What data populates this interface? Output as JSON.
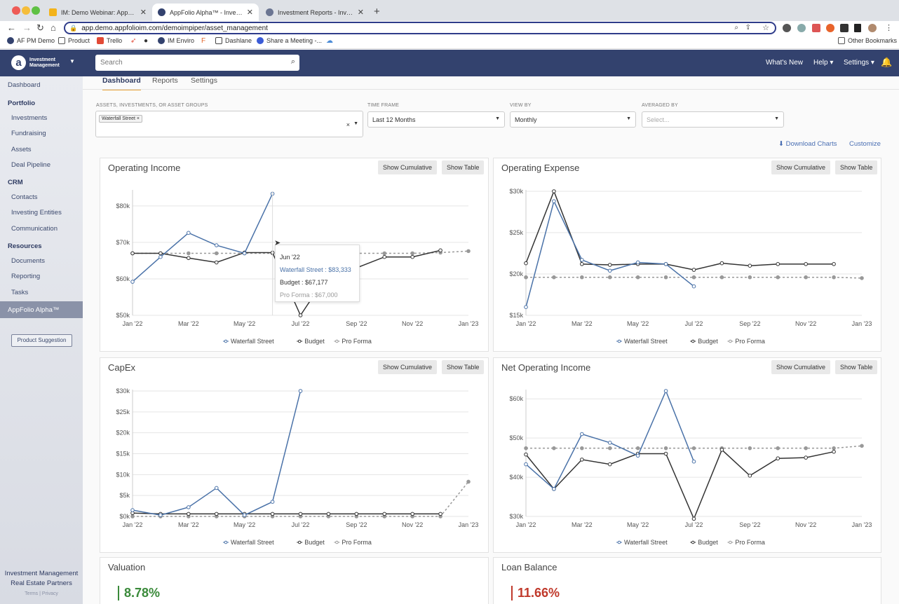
{
  "browser": {
    "tabs": [
      {
        "title": "IM: Demo Webinar: AppFolio A",
        "icon_color": "#f3b31b"
      },
      {
        "title": "AppFolio Alpha™ - Investment",
        "icon_color": "#33426e"
      },
      {
        "title": "Investment Reports - Investme",
        "icon_color": "#33426e"
      }
    ],
    "url": "app.demo.appfolioim.com/demoimpiper/asset_management",
    "bookmarks": [
      "AF PM Demo",
      "Product",
      "Trello",
      "IM Enviro",
      "Dashlane",
      "Share a Meeting -..."
    ],
    "other_bookmarks": "Other Bookmarks"
  },
  "header": {
    "brand_line1": "Investment",
    "brand_line2": "Management",
    "logo": "a",
    "search_placeholder": "Search",
    "whats_new": "What's New",
    "help": "Help ▾",
    "settings": "Settings ▾"
  },
  "sidebar": {
    "dashboard": "Dashboard",
    "portfolio": "Portfolio",
    "investments": "Investments",
    "fundraising": "Fundraising",
    "assets": "Assets",
    "deal_pipeline": "Deal Pipeline",
    "crm": "CRM",
    "contacts": "Contacts",
    "investing_entities": "Investing Entities",
    "communication": "Communication",
    "resources": "Resources",
    "documents": "Documents",
    "reporting": "Reporting",
    "tasks": "Tasks",
    "alpha": "AppFolio Alpha™",
    "product_suggestion": "Product Suggestion",
    "footer_line1": "Investment Management",
    "footer_line2": "Real Estate Partners",
    "terms": "Terms",
    "privacy": "Privacy"
  },
  "tabs": {
    "dashboard": "Dashboard",
    "reports": "Reports",
    "settings": "Settings"
  },
  "filters": {
    "assets_label": "ASSETS, INVESTMENTS, OR ASSET GROUPS",
    "asset_tag": "Waterfall Street ×",
    "clear": "×",
    "timeframe_label": "TIME FRAME",
    "timeframe_value": "Last 12 Months",
    "viewby_label": "VIEW BY",
    "viewby_value": "Monthly",
    "averaged_label": "AVERAGED BY",
    "averaged_placeholder": "Select..."
  },
  "actions": {
    "download": "Download Charts",
    "customize": "Customize"
  },
  "buttons": {
    "cumulative": "Show Cumulative",
    "table": "Show Table"
  },
  "colors": {
    "waterfall": "#4a72a8",
    "budget": "#333333",
    "proforma": "#999999"
  },
  "tooltip": {
    "date": "Jun '22",
    "waterfall": "Waterfall Street : $83,333",
    "budget": "Budget : $67,177",
    "proforma": "Pro Forma : $67,000"
  },
  "chart_data": [
    {
      "title": "Operating Income",
      "type": "line",
      "x": [
        "Jan '22",
        "Feb '22",
        "Mar '22",
        "Apr '22",
        "May '22",
        "Jun '22",
        "Jul '22",
        "Aug '22",
        "Sep '22",
        "Oct '22",
        "Nov '22",
        "Dec '22",
        "Jan '23"
      ],
      "xticks": [
        "Jan '22",
        "Mar '22",
        "May '22",
        "Jul '22",
        "Sep '22",
        "Nov '22",
        "Jan '23"
      ],
      "yticks": [
        50000,
        60000,
        70000,
        80000
      ],
      "ytick_labels": [
        "$50k",
        "$60k",
        "$70k",
        "$80k"
      ],
      "ylim": [
        50000,
        84000
      ],
      "series": [
        {
          "name": "Waterfall Street",
          "values": [
            59200,
            66000,
            72600,
            69200,
            67000,
            83333,
            null,
            null,
            null,
            null,
            null,
            null,
            null
          ]
        },
        {
          "name": "Budget",
          "values": [
            67000,
            67000,
            65700,
            64500,
            67200,
            67177,
            50000,
            61500,
            63000,
            66000,
            66000,
            67800,
            null
          ]
        },
        {
          "name": "Pro Forma",
          "values": [
            67000,
            67000,
            67000,
            67000,
            67000,
            67000,
            67000,
            67000,
            67000,
            67000,
            67000,
            67200,
            67600
          ]
        }
      ]
    },
    {
      "title": "Operating Expense",
      "type": "line",
      "x": [
        "Jan '22",
        "Feb '22",
        "Mar '22",
        "Apr '22",
        "May '22",
        "Jun '22",
        "Jul '22",
        "Aug '22",
        "Sep '22",
        "Oct '22",
        "Nov '22",
        "Dec '22",
        "Jan '23"
      ],
      "xticks": [
        "Jan '22",
        "Mar '22",
        "May '22",
        "Jul '22",
        "Sep '22",
        "Nov '22",
        "Jan '23"
      ],
      "yticks": [
        15000,
        20000,
        25000,
        30000
      ],
      "ytick_labels": [
        "$15k",
        "$20k",
        "$25k",
        "$30k"
      ],
      "ylim": [
        15000,
        30000
      ],
      "series": [
        {
          "name": "Waterfall Street",
          "values": [
            16000,
            28800,
            21700,
            20400,
            21400,
            21200,
            18500,
            null,
            null,
            null,
            null,
            null,
            null
          ]
        },
        {
          "name": "Budget",
          "values": [
            21300,
            30000,
            21200,
            21100,
            21200,
            21200,
            20500,
            21300,
            21000,
            21200,
            21200,
            21200,
            null
          ]
        },
        {
          "name": "Pro Forma",
          "values": [
            19600,
            19600,
            19600,
            19600,
            19600,
            19600,
            19600,
            19600,
            19600,
            19600,
            19600,
            19600,
            19500
          ]
        }
      ]
    },
    {
      "title": "CapEx",
      "type": "line",
      "x": [
        "Jan '22",
        "Feb '22",
        "Mar '22",
        "Apr '22",
        "May '22",
        "Jun '22",
        "Jul '22",
        "Aug '22",
        "Sep '22",
        "Oct '22",
        "Nov '22",
        "Dec '22",
        "Jan '23"
      ],
      "xticks": [
        "Jan '22",
        "Mar '22",
        "May '22",
        "Jul '22",
        "Sep '22",
        "Nov '22",
        "Jan '23"
      ],
      "yticks": [
        0,
        5000,
        10000,
        15000,
        20000,
        25000,
        30000
      ],
      "ytick_labels": [
        "$0k",
        "$5k",
        "$10k",
        "$15k",
        "$20k",
        "$25k",
        "$30k"
      ],
      "ylim": [
        0,
        30000
      ],
      "series": [
        {
          "name": "Waterfall Street",
          "values": [
            1500,
            300,
            2200,
            6800,
            300,
            3500,
            30000,
            null,
            null,
            null,
            null,
            null,
            null
          ]
        },
        {
          "name": "Budget",
          "values": [
            800,
            600,
            600,
            600,
            600,
            600,
            600,
            600,
            600,
            600,
            600,
            600,
            null
          ]
        },
        {
          "name": "Pro Forma",
          "values": [
            0,
            0,
            0,
            0,
            0,
            0,
            0,
            0,
            0,
            0,
            0,
            0,
            8300
          ]
        }
      ]
    },
    {
      "title": "Net Operating Income",
      "type": "line",
      "x": [
        "Jan '22",
        "Feb '22",
        "Mar '22",
        "Apr '22",
        "May '22",
        "Jun '22",
        "Jul '22",
        "Aug '22",
        "Sep '22",
        "Oct '22",
        "Nov '22",
        "Dec '22",
        "Jan '23"
      ],
      "xticks": [
        "Jan '22",
        "Mar '22",
        "May '22",
        "Jul '22",
        "Sep '22",
        "Nov '22",
        "Jan '23"
      ],
      "yticks": [
        30000,
        40000,
        50000,
        60000
      ],
      "ytick_labels": [
        "$30k",
        "$40k",
        "$50k",
        "$60k"
      ],
      "ylim": [
        30000,
        62000
      ],
      "series": [
        {
          "name": "Waterfall Street",
          "values": [
            43300,
            37000,
            51000,
            48800,
            45500,
            62000,
            44000,
            null,
            null,
            null,
            null,
            null,
            null
          ]
        },
        {
          "name": "Budget",
          "values": [
            45800,
            37000,
            44500,
            43300,
            46000,
            46000,
            29400,
            47000,
            40400,
            44800,
            45000,
            46500,
            null
          ]
        },
        {
          "name": "Pro Forma",
          "values": [
            47400,
            47400,
            47400,
            47400,
            47400,
            47400,
            47400,
            47400,
            47400,
            47400,
            47400,
            47400,
            48000
          ]
        }
      ]
    }
  ],
  "lower_cards": {
    "valuation": "Valuation",
    "valuation_value": "8.78%",
    "loan": "Loan Balance",
    "loan_value": "11.66%"
  }
}
